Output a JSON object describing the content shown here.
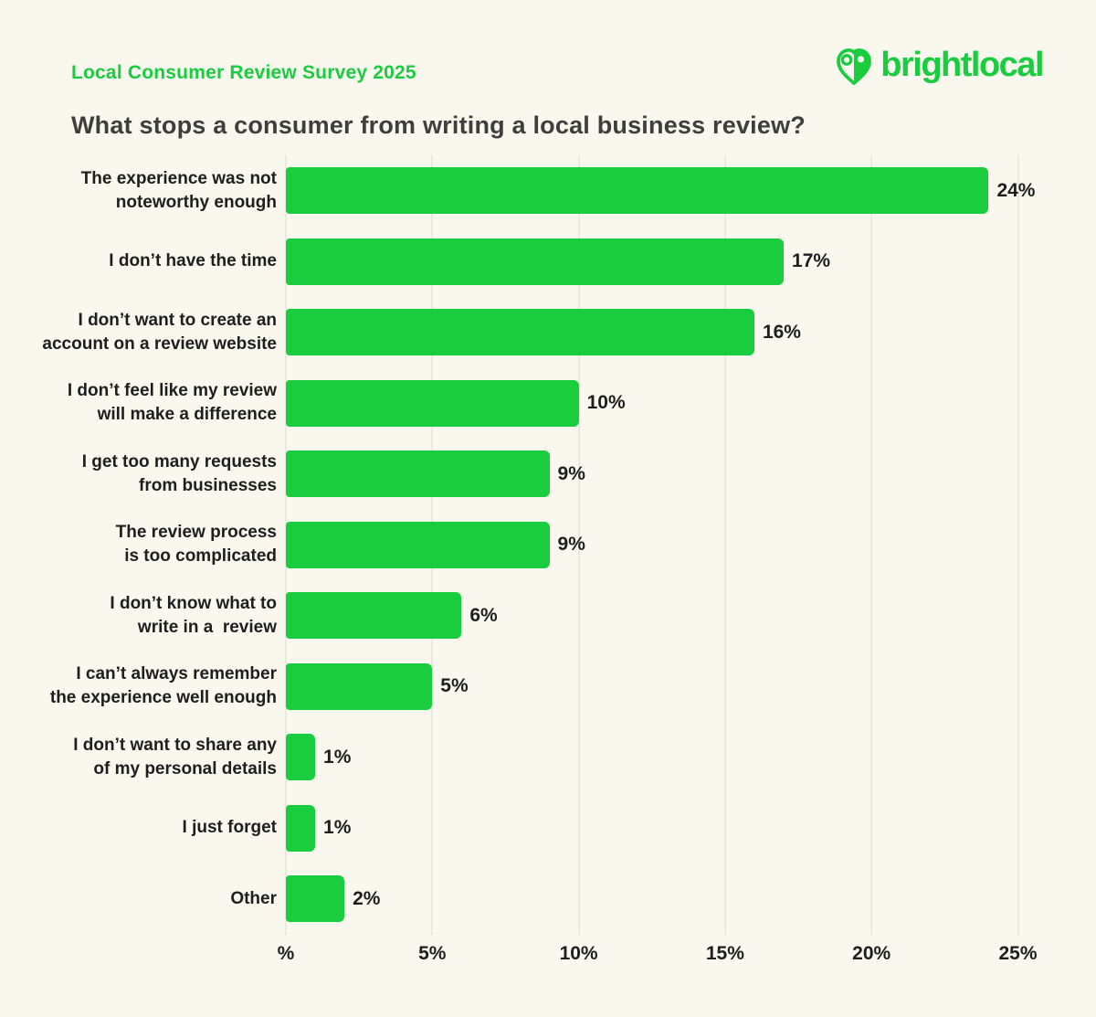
{
  "page": {
    "eyebrow": "Local Consumer Review Survey 2025",
    "title": "What stops a consumer from writing a local business review?",
    "logo": {
      "text": "brightlocal",
      "icon": "brightlocal-heart-pin-icon"
    }
  },
  "colors": {
    "brand_green": "#19CD3F",
    "background": "#FAF7EF",
    "title_text": "#3E3E3C",
    "label_text": "#1E1E1E",
    "gridline": "#ECE8DE"
  },
  "chart_data": {
    "type": "bar",
    "orientation": "horizontal",
    "title": "What stops a consumer from writing a local business review?",
    "xlabel": "",
    "ylabel": "",
    "xlim": [
      0,
      25
    ],
    "grid": "vertical",
    "legend": "none",
    "bar_color": "#19CD3F",
    "categories": [
      "The experience was not noteworthy enough",
      "I don’t have the time",
      "I don’t want to create an account on a review website",
      "I don’t feel like my review will make a difference",
      "I get too many requests from businesses",
      "The review process is too complicated",
      "I don’t know what to write in a  review",
      "I can’t always remember the experience well enough",
      "I don’t want to share any of my personal details",
      "I just forget",
      "Other"
    ],
    "label_lines": [
      [
        "The experience was not",
        "noteworthy enough"
      ],
      [
        "I don’t have the time"
      ],
      [
        "I don’t want to create an",
        "account on a review website"
      ],
      [
        "I don’t feel like my review",
        "will make a difference"
      ],
      [
        "I get too many requests",
        "from businesses"
      ],
      [
        "The review process",
        "is too complicated"
      ],
      [
        "I don’t know what to",
        "write in a  review"
      ],
      [
        "I can’t always remember",
        "the experience well enough"
      ],
      [
        "I don’t want to share any",
        "of my personal details"
      ],
      [
        "I just forget"
      ],
      [
        "Other"
      ]
    ],
    "values": [
      24,
      17,
      16,
      10,
      9,
      9,
      6,
      5,
      1,
      1,
      2
    ],
    "value_labels": [
      "24%",
      "17%",
      "16%",
      "10%",
      "9%",
      "9%",
      "6%",
      "5%",
      "1%",
      "1%",
      "2%"
    ],
    "x_ticks": [
      {
        "value": 0,
        "label": "%"
      },
      {
        "value": 5,
        "label": "5%"
      },
      {
        "value": 10,
        "label": "10%"
      },
      {
        "value": 15,
        "label": "15%"
      },
      {
        "value": 20,
        "label": "20%"
      },
      {
        "value": 25,
        "label": "25%"
      }
    ]
  }
}
